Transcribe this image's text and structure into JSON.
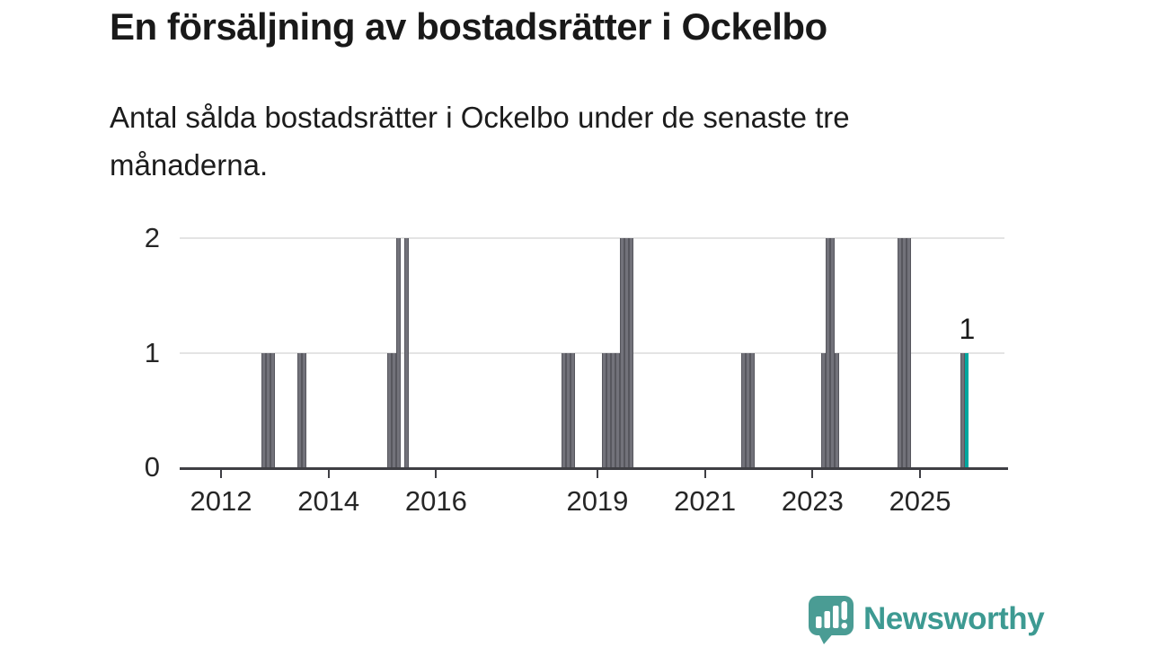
{
  "chart_data": {
    "type": "bar",
    "title": "En försäljning av bostadsrätter i Ockelbo",
    "subtitle_lines": [
      "Antal sålda bostadsrätter i Ockelbo under de senaste tre",
      "månaderna."
    ],
    "x_axis": {
      "range_start": 2011.27,
      "range_end": 2026.64,
      "tick_years": [
        2012,
        2014,
        2016,
        2019,
        2021,
        2023,
        2025
      ]
    },
    "y_axis": {
      "min": 0,
      "max": 2,
      "ticks": [
        0,
        1,
        2
      ]
    },
    "grid": "horizontal",
    "legend": "none",
    "bars": [
      {
        "month": "2012-10",
        "value": 1
      },
      {
        "month": "2012-11",
        "value": 1
      },
      {
        "month": "2012-12",
        "value": 1
      },
      {
        "month": "2013-06",
        "value": 1
      },
      {
        "month": "2013-07",
        "value": 1
      },
      {
        "month": "2015-02",
        "value": 1
      },
      {
        "month": "2015-03",
        "value": 1
      },
      {
        "month": "2015-04",
        "value": 2
      },
      {
        "month": "2015-06",
        "value": 2
      },
      {
        "month": "2018-05",
        "value": 1
      },
      {
        "month": "2018-06",
        "value": 1
      },
      {
        "month": "2018-07",
        "value": 1
      },
      {
        "month": "2019-02",
        "value": 1
      },
      {
        "month": "2019-03",
        "value": 1
      },
      {
        "month": "2019-04",
        "value": 1
      },
      {
        "month": "2019-05",
        "value": 1
      },
      {
        "month": "2019-06",
        "value": 2
      },
      {
        "month": "2019-07",
        "value": 2
      },
      {
        "month": "2019-08",
        "value": 2
      },
      {
        "month": "2021-09",
        "value": 1
      },
      {
        "month": "2021-10",
        "value": 1
      },
      {
        "month": "2021-11",
        "value": 1
      },
      {
        "month": "2023-03",
        "value": 1
      },
      {
        "month": "2023-04",
        "value": 2
      },
      {
        "month": "2023-05",
        "value": 2
      },
      {
        "month": "2023-06",
        "value": 1
      },
      {
        "month": "2024-08",
        "value": 2
      },
      {
        "month": "2024-09",
        "value": 2
      },
      {
        "month": "2024-10",
        "value": 2
      },
      {
        "month": "2025-10",
        "value": 1
      },
      {
        "month": "2025-11",
        "value": 1,
        "highlight": true
      }
    ],
    "annotation": {
      "label": "1",
      "month": "2025-11"
    }
  },
  "colors": {
    "bar": "#72727a",
    "bar_border": "#57575e",
    "highlight_bar": "#00a79f",
    "gridline": "#e4e4e4",
    "axis": "#3f3f44",
    "text": "#1c1c1c",
    "brand_teal": "#3d9a92",
    "logo_teal": "#4a9c94"
  },
  "branding": {
    "name": "Newsworthy",
    "logo_icon": "bar-chart-speech-bubble-icon"
  }
}
